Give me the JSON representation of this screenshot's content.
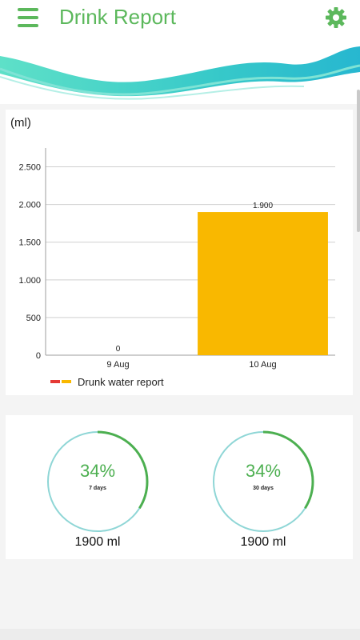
{
  "header": {
    "title": "Drink Report",
    "menu_icon": "hamburger-menu-icon",
    "settings_icon": "gear-icon",
    "accent_color": "#5cb85c"
  },
  "chart": {
    "unit_label": "(ml)",
    "legend_label": "Drunk water report",
    "legend_colors": [
      "#e53935",
      "#f9b800"
    ],
    "bar_color": "#f9b800"
  },
  "chart_data": {
    "type": "bar",
    "categories": [
      "9 Aug",
      "10 Aug"
    ],
    "values": [
      0,
      1900
    ],
    "value_labels": [
      "0",
      "1.900"
    ],
    "title": "",
    "xlabel": "",
    "ylabel": "(ml)",
    "ylim": [
      0,
      2750
    ],
    "yticks": [
      0,
      500,
      1000,
      1500,
      2000,
      2500
    ],
    "ytick_labels": [
      "0",
      "500",
      "1.000",
      "1.500",
      "2.000",
      "2.500"
    ],
    "grid": true,
    "legend": "bottom-left",
    "series": [
      {
        "name": "Drunk water report",
        "values": [
          0,
          1900
        ]
      }
    ]
  },
  "stats": [
    {
      "percent_label": "34%",
      "percent": 34,
      "period": "7 days",
      "amount": "1900 ml"
    },
    {
      "percent_label": "34%",
      "percent": 34,
      "period": "30 days",
      "amount": "1900 ml"
    }
  ],
  "ring_colors": {
    "track": "#8fd6d6",
    "progress": "#4caf50"
  }
}
